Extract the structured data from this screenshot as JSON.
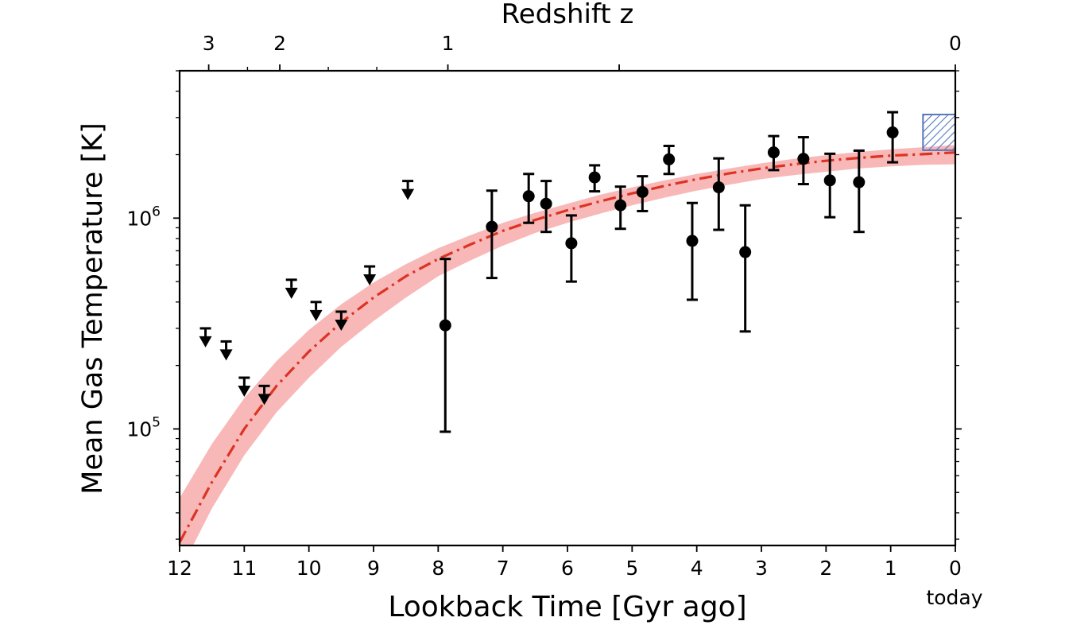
{
  "chart_data": {
    "type": "scatter",
    "xlabel": "Lookback Time [Gyr ago]",
    "ylabel": "Mean Gas Temperature [K]",
    "top_axis_label": "Redshift z",
    "today_label": "today",
    "xlim": [
      12,
      0
    ],
    "ylim": [
      28000,
      5000000
    ],
    "yscale": "log",
    "x_ticks": [
      "12",
      "11",
      "10",
      "9",
      "8",
      "7",
      "6",
      "5",
      "4",
      "3",
      "2",
      "1",
      "0"
    ],
    "y_ticks": [
      {
        "base": "10",
        "exp": "5",
        "value": 100000
      },
      {
        "base": "10",
        "exp": "6",
        "value": 1000000
      }
    ],
    "top_ticks": [
      {
        "label": "3",
        "lookback": 11.55
      },
      {
        "label": "2",
        "lookback": 10.45
      },
      {
        "label": "1",
        "lookback": 7.85
      },
      {
        "label": "",
        "lookback": 5.2
      },
      {
        "label": "0",
        "lookback": 0.0
      }
    ],
    "top_minor_ticks": [
      10.95,
      9.7,
      8.95
    ],
    "grid": false,
    "series": [
      {
        "kind": "measurements",
        "color": "#000000",
        "points": [
          {
            "x": 7.89,
            "y": 310000,
            "ylo": 97000,
            "yhi": 640000
          },
          {
            "x": 7.17,
            "y": 910000,
            "ylo": 520000,
            "yhi": 1350000
          },
          {
            "x": 6.6,
            "y": 1270000,
            "ylo": 950000,
            "yhi": 1620000
          },
          {
            "x": 6.33,
            "y": 1170000,
            "ylo": 860000,
            "yhi": 1500000
          },
          {
            "x": 5.94,
            "y": 760000,
            "ylo": 500000,
            "yhi": 1030000
          },
          {
            "x": 5.58,
            "y": 1560000,
            "ylo": 1340000,
            "yhi": 1780000
          },
          {
            "x": 5.18,
            "y": 1150000,
            "ylo": 890000,
            "yhi": 1410000
          },
          {
            "x": 4.84,
            "y": 1330000,
            "ylo": 1080000,
            "yhi": 1580000
          },
          {
            "x": 4.43,
            "y": 1900000,
            "ylo": 1620000,
            "yhi": 2200000
          },
          {
            "x": 4.07,
            "y": 780000,
            "ylo": 410000,
            "yhi": 1180000
          },
          {
            "x": 3.66,
            "y": 1400000,
            "ylo": 880000,
            "yhi": 1920000
          },
          {
            "x": 3.25,
            "y": 690000,
            "ylo": 290000,
            "yhi": 1150000
          },
          {
            "x": 2.81,
            "y": 2050000,
            "ylo": 1690000,
            "yhi": 2450000
          },
          {
            "x": 2.35,
            "y": 1910000,
            "ylo": 1450000,
            "yhi": 2420000
          },
          {
            "x": 1.94,
            "y": 1510000,
            "ylo": 1010000,
            "yhi": 2020000
          },
          {
            "x": 1.49,
            "y": 1480000,
            "ylo": 860000,
            "yhi": 2090000
          },
          {
            "x": 0.97,
            "y": 2550000,
            "ylo": 1840000,
            "yhi": 3180000
          }
        ]
      },
      {
        "kind": "upper_limits",
        "color": "#000000",
        "points": [
          {
            "x": 11.6,
            "y": 300000
          },
          {
            "x": 11.28,
            "y": 260000
          },
          {
            "x": 11.0,
            "y": 175000
          },
          {
            "x": 10.69,
            "y": 160000
          },
          {
            "x": 10.27,
            "y": 510000
          },
          {
            "x": 9.89,
            "y": 400000
          },
          {
            "x": 9.5,
            "y": 360000
          },
          {
            "x": 9.06,
            "y": 590000
          },
          {
            "x": 8.47,
            "y": 1500000
          }
        ]
      },
      {
        "kind": "model",
        "line_color": "#dd3322",
        "band_color": "#f8b8b8",
        "x": [
          12,
          11.5,
          11,
          10.5,
          10,
          9.5,
          9,
          8.5,
          8,
          7.5,
          7,
          6.5,
          6,
          5.5,
          5,
          4.5,
          4,
          3.5,
          3,
          2.5,
          2,
          1.5,
          1,
          0.5,
          0
        ],
        "y": [
          29000,
          56000,
          100000,
          160000,
          233000,
          320000,
          420000,
          530000,
          640000,
          750000,
          870000,
          980000,
          1090000,
          1200000,
          1310000,
          1420000,
          1530000,
          1630000,
          1720000,
          1800000,
          1870000,
          1930000,
          1980000,
          2010000,
          2050000
        ],
        "y_lower": [
          21000,
          42000,
          75000,
          120000,
          175000,
          245000,
          325000,
          420000,
          530000,
          630000,
          740000,
          850000,
          950000,
          1050000,
          1150000,
          1250000,
          1350000,
          1440000,
          1530000,
          1600000,
          1660000,
          1720000,
          1760000,
          1790000,
          1800000
        ],
        "y_upper": [
          47000,
          85000,
          140000,
          210000,
          295000,
          390000,
          495000,
          605000,
          720000,
          830000,
          950000,
          1060000,
          1170000,
          1290000,
          1400000,
          1510000,
          1620000,
          1720000,
          1820000,
          1910000,
          1990000,
          2060000,
          2120000,
          2170000,
          2220000
        ]
      },
      {
        "kind": "present_day_box",
        "color": "#5577bb",
        "x0": 0.5,
        "x1": 0.0,
        "y0": 2100000,
        "y1": 3100000
      }
    ]
  }
}
